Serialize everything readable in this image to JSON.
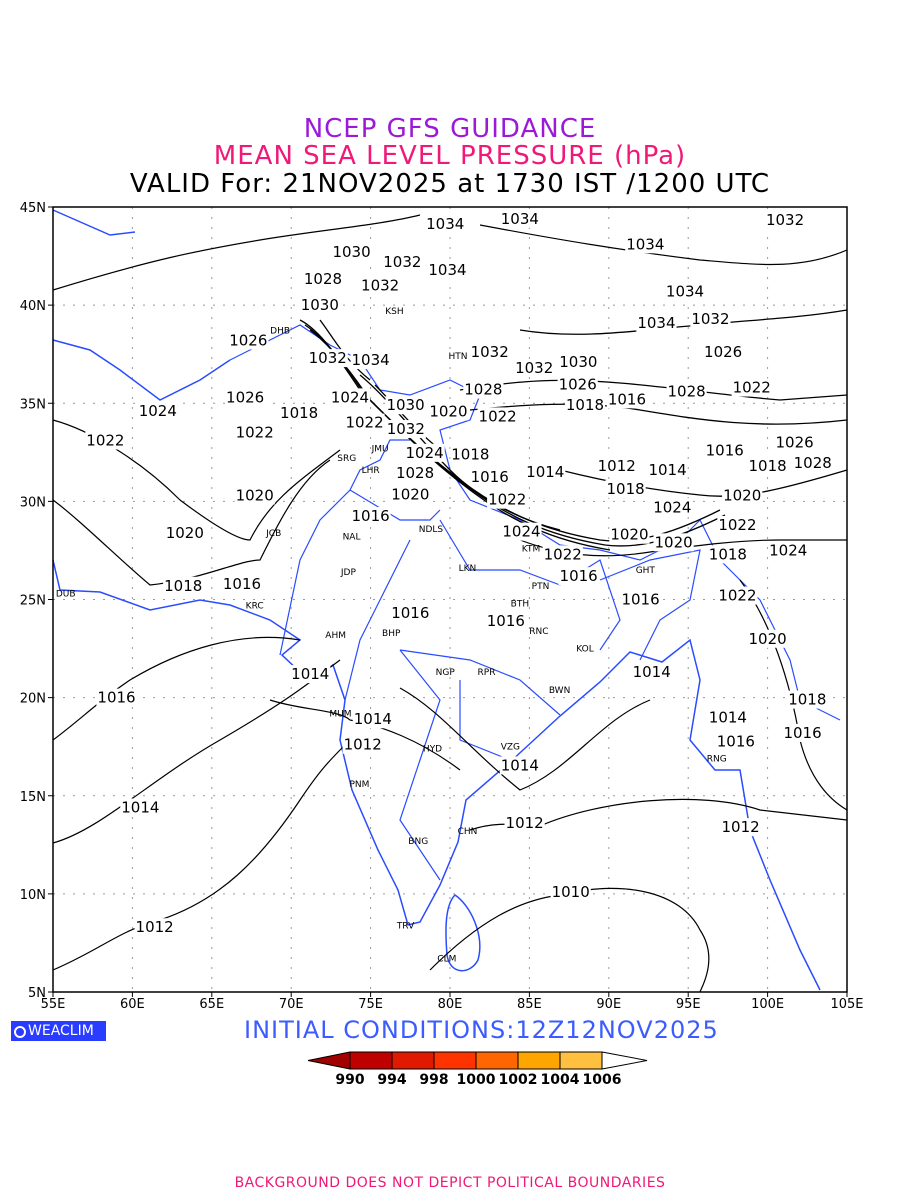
{
  "title": {
    "line1": "NCEP GFS GUIDANCE",
    "line2": "MEAN SEA LEVEL PRESSURE (hPa)",
    "line3": "VALID For: 21NOV2025 at 1730 IST /1200 UTC"
  },
  "colors": {
    "title1": "#9a1ad8",
    "title2": "#f01878",
    "coast": "#2a4cff",
    "contour": "#000000"
  },
  "map": {
    "lon_range": [
      55,
      105
    ],
    "lat_range": [
      5,
      45
    ],
    "lon_ticks": [
      {
        "v": 55,
        "t": "55E"
      },
      {
        "v": 60,
        "t": "60E"
      },
      {
        "v": 65,
        "t": "65E"
      },
      {
        "v": 70,
        "t": "70E"
      },
      {
        "v": 75,
        "t": "75E"
      },
      {
        "v": 80,
        "t": "80E"
      },
      {
        "v": 85,
        "t": "85E"
      },
      {
        "v": 90,
        "t": "90E"
      },
      {
        "v": 95,
        "t": "95E"
      },
      {
        "v": 100,
        "t": "100E"
      },
      {
        "v": 105,
        "t": "105E"
      }
    ],
    "lat_ticks": [
      {
        "v": 5,
        "t": "5N"
      },
      {
        "v": 10,
        "t": "10N"
      },
      {
        "v": 15,
        "t": "15N"
      },
      {
        "v": 20,
        "t": "20N"
      },
      {
        "v": 25,
        "t": "25N"
      },
      {
        "v": 30,
        "t": "30N"
      },
      {
        "v": 35,
        "t": "35N"
      },
      {
        "v": 40,
        "t": "40N"
      },
      {
        "v": 45,
        "t": "45N"
      }
    ],
    "contour_labels": [
      {
        "t": "1034",
        "lon": 79.7,
        "lat": 44.5
      },
      {
        "t": "1034",
        "lon": 84.4,
        "lat": 44.4
      },
      {
        "t": "1032",
        "lon": 101.1,
        "lat": 44.7
      },
      {
        "t": "1030",
        "lon": 73.8,
        "lat": 42.7
      },
      {
        "t": "1028",
        "lon": 72.0,
        "lat": 41.7
      },
      {
        "t": "1032",
        "lon": 77.0,
        "lat": 42.2
      },
      {
        "t": "1034",
        "lon": 79.4,
        "lat": 41.8
      },
      {
        "t": "1034",
        "lon": 92.3,
        "lat": 43.1
      },
      {
        "t": "1032",
        "lon": 75.6,
        "lat": 41.0
      },
      {
        "t": "1034",
        "lon": 94.8,
        "lat": 40.7
      },
      {
        "t": "1030",
        "lon": 71.8,
        "lat": 40.0
      },
      {
        "t": "1026",
        "lon": 67.3,
        "lat": 38.2
      },
      {
        "t": "1032",
        "lon": 96.4,
        "lat": 39.3
      },
      {
        "t": "1034",
        "lon": 93.0,
        "lat": 39.1
      },
      {
        "t": "1026",
        "lon": 97.2,
        "lat": 37.6
      },
      {
        "t": "1032",
        "lon": 72.3,
        "lat": 37.3
      },
      {
        "t": "1034",
        "lon": 75.0,
        "lat": 37.2
      },
      {
        "t": "1032",
        "lon": 82.5,
        "lat": 37.6
      },
      {
        "t": "1032",
        "lon": 85.3,
        "lat": 36.8
      },
      {
        "t": "1030",
        "lon": 87.2,
        "lat": 37.1
      },
      {
        "t": "1026",
        "lon": 87.6,
        "lat": 36.3
      },
      {
        "t": "1028",
        "lon": 82.1,
        "lat": 35.7
      },
      {
        "t": "1028",
        "lon": 94.9,
        "lat": 35.6
      },
      {
        "t": "1022",
        "lon": 99.0,
        "lat": 35.8
      },
      {
        "t": "1024",
        "lon": 61.6,
        "lat": 34.6
      },
      {
        "t": "1026",
        "lon": 67.1,
        "lat": 35.3
      },
      {
        "t": "1018",
        "lon": 70.5,
        "lat": 34.5
      },
      {
        "t": "1024",
        "lon": 73.7,
        "lat": 35.3
      },
      {
        "t": "1030",
        "lon": 77.2,
        "lat": 34.9
      },
      {
        "t": "1020",
        "lon": 79.9,
        "lat": 35.3
      },
      {
        "t": "1022",
        "lon": 83.0,
        "lat": 35.4
      },
      {
        "t": "1018",
        "lon": 88.5,
        "lat": 34.9
      },
      {
        "t": "1016",
        "lon": 90.7,
        "lat": 35.2
      },
      {
        "t": "1022",
        "lon": 58.3,
        "lat": 33.1
      },
      {
        "t": "1022",
        "lon": 67.7,
        "lat": 33.5
      },
      {
        "t": "1032",
        "lon": 78.1,
        "lat": 34.4
      },
      {
        "t": "1024",
        "lon": 78.4,
        "lat": 33.9
      },
      {
        "t": "1022",
        "lon": 75.5,
        "lat": 33.3
      },
      {
        "t": "1018",
        "lon": 80.4,
        "lat": 32.4
      },
      {
        "t": "1016",
        "lon": 82.5,
        "lat": 32.3
      },
      {
        "t": "1016",
        "lon": 97.3,
        "lat": 32.6
      },
      {
        "t": "1026",
        "lon": 101.7,
        "lat": 33.0
      },
      {
        "t": "1018",
        "lon": 100.0,
        "lat": 31.8
      },
      {
        "t": "1028",
        "lon": 102.4,
        "lat": 32.3
      },
      {
        "t": "1028",
        "lon": 77.8,
        "lat": 31.8
      },
      {
        "t": "1014",
        "lon": 86.0,
        "lat": 31.5
      },
      {
        "t": "1012",
        "lon": 90.5,
        "lat": 31.8
      },
      {
        "t": "1014",
        "lon": 93.7,
        "lat": 31.6
      },
      {
        "t": "1018",
        "lon": 91.5,
        "lat": 31.0
      },
      {
        "t": "1022",
        "lon": 83.6,
        "lat": 30.8
      },
      {
        "t": "1020",
        "lon": 77.5,
        "lat": 30.7
      },
      {
        "t": "1020",
        "lon": 67.7,
        "lat": 30.3
      },
      {
        "t": "1024",
        "lon": 94.0,
        "lat": 29.7
      },
      {
        "t": "1020",
        "lon": 98.4,
        "lat": 30.3
      },
      {
        "t": "1016",
        "lon": 75.0,
        "lat": 28.9
      },
      {
        "t": "1020",
        "lon": 63.3,
        "lat": 28.4
      },
      {
        "t": "1024",
        "lon": 84.5,
        "lat": 28.1
      },
      {
        "t": "1020",
        "lon": 91.3,
        "lat": 28.3
      },
      {
        "t": "1022",
        "lon": 98.1,
        "lat": 28.8
      },
      {
        "t": "1022",
        "lon": 87.1,
        "lat": 27.3
      },
      {
        "t": "1020",
        "lon": 93.2,
        "lat": 27.2
      },
      {
        "t": "1018",
        "lon": 97.5,
        "lat": 27.3
      },
      {
        "t": "1024",
        "lon": 101.3,
        "lat": 27.5
      },
      {
        "t": "1018",
        "lon": 63.2,
        "lat": 25.7
      },
      {
        "t": "1016",
        "lon": 66.9,
        "lat": 25.8
      },
      {
        "t": "1016",
        "lon": 88.1,
        "lat": 26.9
      },
      {
        "t": "1022",
        "lon": 98.1,
        "lat": 25.2
      },
      {
        "t": "1016",
        "lon": 92.0,
        "lat": 25.0
      },
      {
        "t": "1016",
        "lon": 77.5,
        "lat": 23.6
      },
      {
        "t": "1016",
        "lon": 84.4,
        "lat": 23.9
      },
      {
        "t": "1020",
        "lon": 100.0,
        "lat": 23.0
      },
      {
        "t": "1014",
        "lon": 71.2,
        "lat": 21.2
      },
      {
        "t": "1014",
        "lon": 92.7,
        "lat": 21.3
      },
      {
        "t": "1018",
        "lon": 102.5,
        "lat": 19.9
      },
      {
        "t": "1016",
        "lon": 59.0,
        "lat": 20.0
      },
      {
        "t": "1014",
        "lon": 74.7,
        "lat": 18.9
      },
      {
        "t": "1014",
        "lon": 97.5,
        "lat": 19.0
      },
      {
        "t": "1012",
        "lon": 74.5,
        "lat": 17.6
      },
      {
        "t": "1016",
        "lon": 98.0,
        "lat": 17.4
      },
      {
        "t": "1016",
        "lon": 102.2,
        "lat": 18.2
      },
      {
        "t": "1014",
        "lon": 84.4,
        "lat": 16.9
      },
      {
        "t": "1014",
        "lon": 60.5,
        "lat": 14.4
      },
      {
        "t": "1012",
        "lon": 84.7,
        "lat": 13.6
      },
      {
        "t": "1012",
        "lon": 98.3,
        "lat": 13.4
      },
      {
        "t": "1010",
        "lon": 87.6,
        "lat": 10.1
      },
      {
        "t": "1012",
        "lon": 61.4,
        "lat": 8.3
      }
    ],
    "stations": [
      {
        "t": "DUB",
        "lon": 55.8,
        "lat": 25.3
      },
      {
        "t": "KRC",
        "lon": 67.7,
        "lat": 24.7
      },
      {
        "t": "JCB",
        "lon": 68.9,
        "lat": 28.4
      },
      {
        "t": "SRG",
        "lon": 73.5,
        "lat": 32.2
      },
      {
        "t": "LHR",
        "lon": 75.0,
        "lat": 31.6
      },
      {
        "t": "JMU",
        "lon": 75.6,
        "lat": 32.7
      },
      {
        "t": "NAL",
        "lon": 73.8,
        "lat": 28.2
      },
      {
        "t": "JDP",
        "lon": 73.6,
        "lat": 26.4
      },
      {
        "t": "NDLS",
        "lon": 78.8,
        "lat": 28.6
      },
      {
        "t": "LKN",
        "lon": 81.1,
        "lat": 26.6
      },
      {
        "t": "PTN",
        "lon": 85.7,
        "lat": 25.7
      },
      {
        "t": "BTH",
        "lon": 84.4,
        "lat": 24.8
      },
      {
        "t": "RNC",
        "lon": 85.6,
        "lat": 23.4
      },
      {
        "t": "KOL",
        "lon": 88.5,
        "lat": 22.5
      },
      {
        "t": "BWN",
        "lon": 86.9,
        "lat": 20.4
      },
      {
        "t": "AHM",
        "lon": 72.8,
        "lat": 23.2
      },
      {
        "t": "BHP",
        "lon": 76.3,
        "lat": 23.3
      },
      {
        "t": "NGP",
        "lon": 79.7,
        "lat": 21.3
      },
      {
        "t": "RPR",
        "lon": 82.3,
        "lat": 21.3
      },
      {
        "t": "MUM",
        "lon": 73.1,
        "lat": 19.2
      },
      {
        "t": "HYD",
        "lon": 78.9,
        "lat": 17.4
      },
      {
        "t": "VZG",
        "lon": 83.8,
        "lat": 17.5
      },
      {
        "t": "PNM",
        "lon": 74.3,
        "lat": 15.6
      },
      {
        "t": "CHN",
        "lon": 81.1,
        "lat": 13.2
      },
      {
        "t": "BNG",
        "lon": 78.0,
        "lat": 12.7
      },
      {
        "t": "TRV",
        "lon": 77.2,
        "lat": 8.4
      },
      {
        "t": "CLM",
        "lon": 79.8,
        "lat": 6.7
      },
      {
        "t": "GHT",
        "lon": 92.3,
        "lat": 26.5
      },
      {
        "t": "KTM",
        "lon": 85.1,
        "lat": 27.6
      },
      {
        "t": "RNG",
        "lon": 96.8,
        "lat": 16.9
      },
      {
        "t": "KSH",
        "lon": 76.5,
        "lat": 39.7
      },
      {
        "t": "HTN",
        "lon": 80.5,
        "lat": 37.4
      },
      {
        "t": "DHB",
        "lon": 69.3,
        "lat": 38.7
      }
    ]
  },
  "logo": {
    "text": "WEACLIM"
  },
  "initial_conditions": "INITIAL  CONDITIONS:12Z12NOV2025",
  "colorbar": {
    "levels": [
      "990",
      "994",
      "998",
      "1000",
      "1002",
      "1004",
      "1006"
    ],
    "colors": [
      "#a00000",
      "#bf0000",
      "#e01a00",
      "#ff3300",
      "#ff6600",
      "#ffa500",
      "#ffc040",
      "#ffffff"
    ]
  },
  "footer": "BACKGROUND DOES NOT DEPICT POLITICAL BOUNDARIES"
}
